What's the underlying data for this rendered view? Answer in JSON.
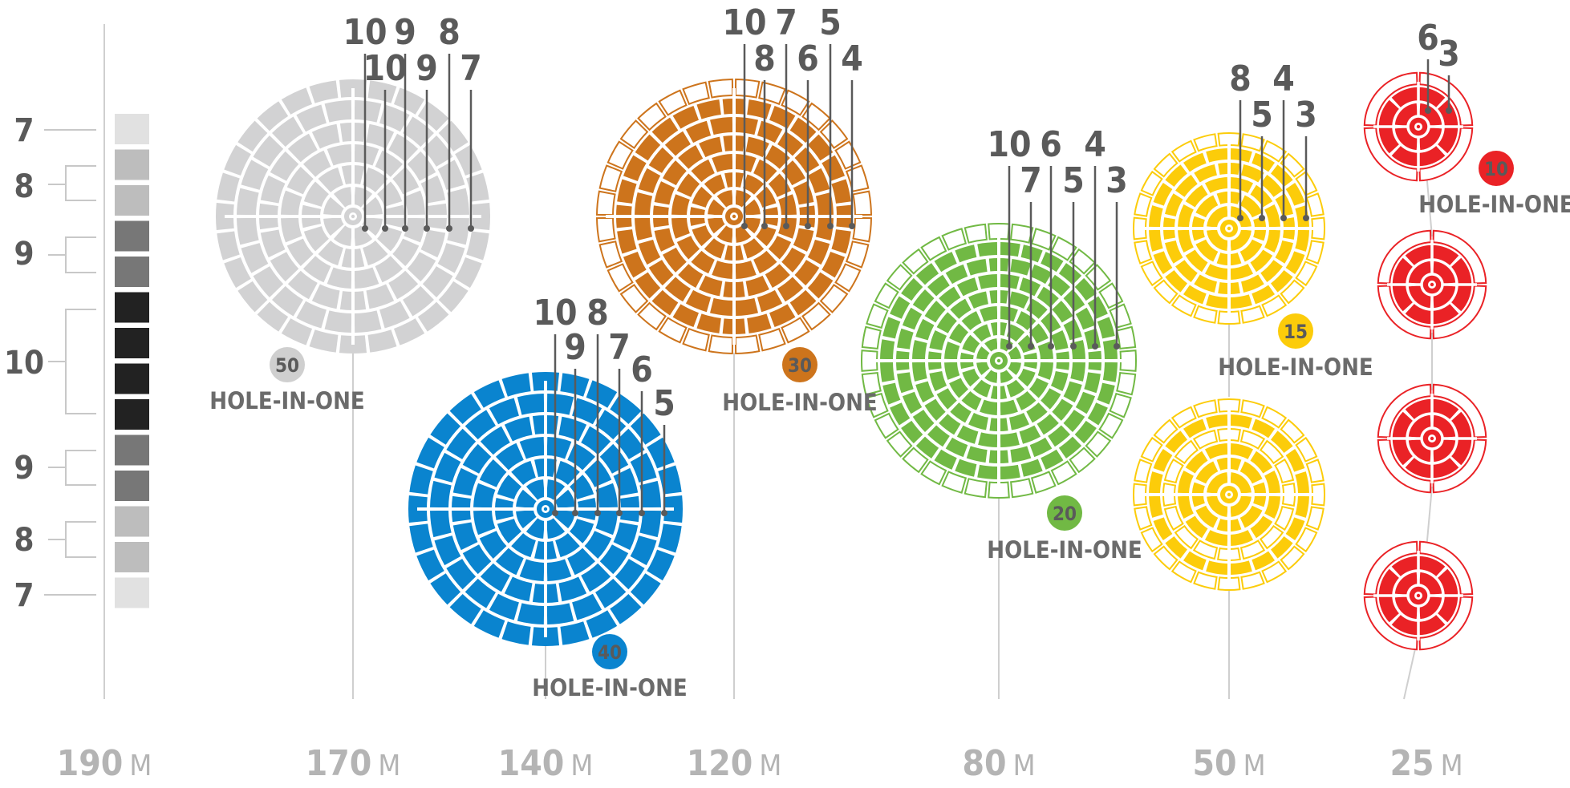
{
  "scale": {
    "labels": [
      "7",
      "8",
      "9",
      "10",
      "9",
      "8",
      "7"
    ],
    "shades": [
      "#e1e1e1",
      "#bdbdbd",
      "#bdbdbd",
      "#777777",
      "#777777",
      "#222222",
      "#222222",
      "#222222",
      "#222222",
      "#777777",
      "#777777",
      "#bdbdbd",
      "#bdbdbd",
      "#e1e1e1"
    ]
  },
  "distances": [
    {
      "value": "190",
      "unit": "M"
    },
    {
      "value": "170",
      "unit": "M"
    },
    {
      "value": "140",
      "unit": "M"
    },
    {
      "value": "120",
      "unit": "M"
    },
    {
      "value": "80",
      "unit": "M"
    },
    {
      "value": "50",
      "unit": "M"
    },
    {
      "value": "25",
      "unit": "M"
    }
  ],
  "greens": [
    {
      "id": "170",
      "color": "#d2d2d3",
      "fill_from": "center",
      "rings": 6,
      "badge": "50",
      "badge_text": "HOLE-IN-ONE",
      "score_labels": [
        "10",
        "9",
        "8",
        "10",
        "9",
        "7"
      ]
    },
    {
      "id": "140",
      "color": "#0a84cf",
      "fill_from": "center",
      "rings": 6,
      "badge": "40",
      "badge_text": "HOLE-IN-ONE",
      "score_labels": [
        "10",
        "8",
        "9",
        "7",
        "6",
        "5"
      ]
    },
    {
      "id": "120",
      "color": "#cd741c",
      "fill_from": "center",
      "rings": 7,
      "badge": "30",
      "badge_text": "HOLE-IN-ONE",
      "score_labels": [
        "10",
        "7",
        "5",
        "8",
        "6",
        "4"
      ]
    },
    {
      "id": "80",
      "color": "#71b944",
      "fill_from": "center",
      "rings": 8,
      "badge": "20",
      "badge_text": "HOLE-IN-ONE",
      "score_labels": [
        "10",
        "6",
        "4",
        "7",
        "5",
        "3"
      ]
    },
    {
      "id": "50a",
      "color": "#fccc0a",
      "fill_from": "center",
      "rings": 6,
      "badge": "15",
      "badge_text": "HOLE-IN-ONE",
      "score_labels": [
        "8",
        "4",
        "5",
        "3"
      ]
    },
    {
      "id": "50b",
      "color": "#fccc0a",
      "fill_from": "center",
      "rings": 6
    },
    {
      "id": "25a",
      "color": "#ea2226",
      "fill_from": "center",
      "rings": 3,
      "badge": "10",
      "badge_text": "HOLE-IN-ONE",
      "score_labels": [
        "6",
        "3"
      ]
    },
    {
      "id": "25b",
      "color": "#ea2226",
      "fill_from": "center",
      "rings": 3
    },
    {
      "id": "25c",
      "color": "#ea2226",
      "fill_from": "center",
      "rings": 3
    },
    {
      "id": "25d",
      "color": "#ea2226",
      "fill_from": "center",
      "rings": 3
    }
  ]
}
